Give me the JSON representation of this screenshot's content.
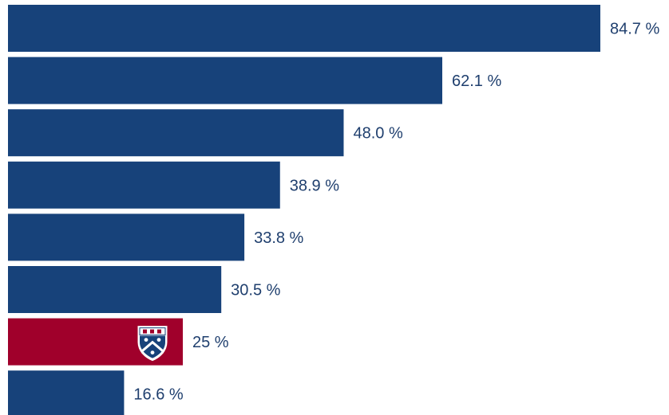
{
  "chart_data": {
    "type": "bar",
    "orientation": "horizontal",
    "title": "",
    "xlabel": "",
    "ylabel": "",
    "xlim": [
      0,
      100
    ],
    "grid": false,
    "legend": "none",
    "bars": [
      {
        "value": 84.7,
        "label": "84.7 %",
        "highlight": false
      },
      {
        "value": 62.1,
        "label": "62.1 %",
        "highlight": false
      },
      {
        "value": 48.0,
        "label": "48.0 %",
        "highlight": false
      },
      {
        "value": 38.9,
        "label": "38.9 %",
        "highlight": false
      },
      {
        "value": 33.8,
        "label": "33.8 %",
        "highlight": false
      },
      {
        "value": 30.5,
        "label": "30.5 %",
        "highlight": false
      },
      {
        "value": 25,
        "label": "25 %",
        "highlight": true,
        "icon": "penn-shield-icon"
      },
      {
        "value": 16.6,
        "label": "16.6 %",
        "highlight": false
      }
    ],
    "colors": {
      "bar": "#17427a",
      "highlight": "#a0002b",
      "label": "#1f3f6e"
    }
  }
}
